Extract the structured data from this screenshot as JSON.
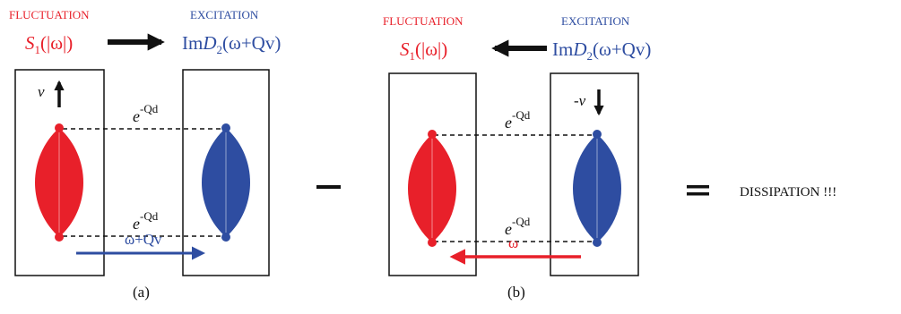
{
  "colors": {
    "fluctuation": "#e8202a",
    "excitation": "#2e4da1",
    "black": "#111111"
  },
  "panel_a": {
    "fluct_header": "FLUCTUATION",
    "excit_header": "EXCITATION",
    "s1_symbol": "S",
    "s1_sub": "1",
    "s1_arg": "(|ω|)",
    "im_prefix": "Im",
    "im_symbol": "D",
    "im_sub": "2",
    "im_arg": "(ω+Qv)",
    "velocity": "v",
    "coupling_base": "e",
    "coupling_exp": "-Qd",
    "transfer": "ω+Qv",
    "caption": "(a)"
  },
  "panel_b": {
    "fluct_header": "FLUCTUATION",
    "excit_header": "EXCITATION",
    "s1_symbol": "S",
    "s1_sub": "1",
    "s1_arg": "(|ω|)",
    "im_prefix": "Im",
    "im_symbol": "D",
    "im_sub": "2",
    "im_arg": "(ω+Qv)",
    "velocity": "-v",
    "coupling_base": "e",
    "coupling_exp": "-Qd",
    "transfer": "ω",
    "caption": "(b)"
  },
  "result": {
    "label": "DISSIPATION !!!"
  }
}
